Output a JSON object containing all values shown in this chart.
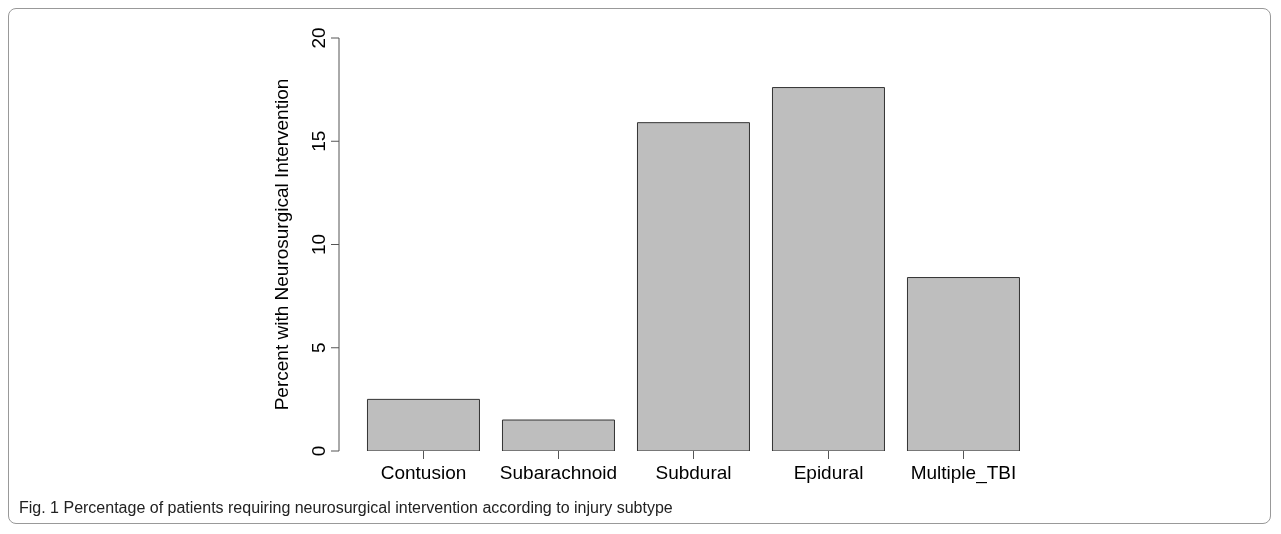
{
  "chart_data": {
    "type": "bar",
    "ylabel": "Percent with Neurosurgical Intervention",
    "categories": [
      "Contusion",
      "Subarachnoid",
      "Subdural",
      "Epidural",
      "Multiple_TBI"
    ],
    "values": [
      2.5,
      1.5,
      15.9,
      17.6,
      8.4
    ],
    "color": "#bebebe",
    "ylim": [
      0,
      20
    ],
    "yticks": [
      0,
      5,
      10,
      15,
      20
    ],
    "annotations": [
      "Fig. 1 Percentage of patients requiring neurosurgical intervention according to injury subtype"
    ]
  }
}
